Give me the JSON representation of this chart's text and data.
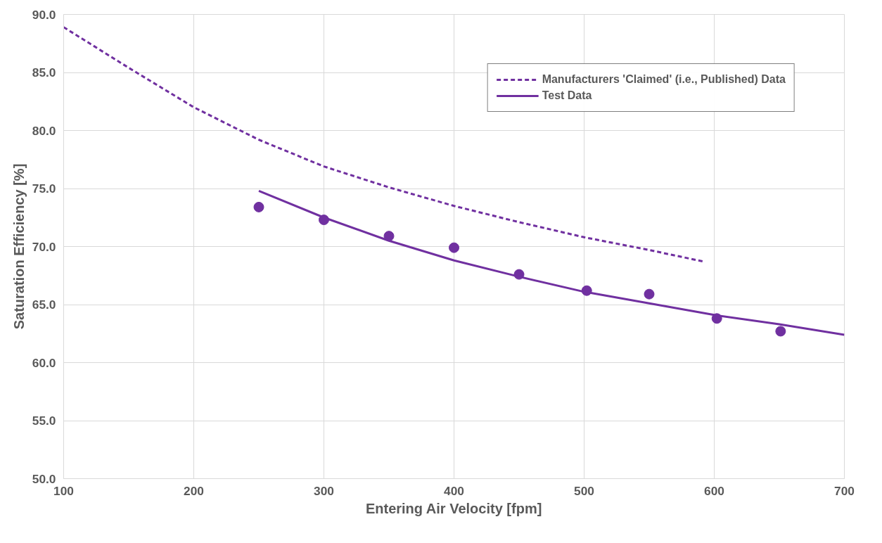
{
  "chart_data": {
    "type": "line",
    "xlabel": "Entering Air Velocity [fpm]",
    "ylabel": "Saturation Efficiency [%]",
    "xlim": [
      100,
      700
    ],
    "xticks": [
      100,
      200,
      300,
      400,
      500,
      600,
      700
    ],
    "ylim": [
      50,
      90
    ],
    "yticks": [
      {
        "value": 50,
        "label": "50.0"
      },
      {
        "value": 55,
        "label": "55.0"
      },
      {
        "value": 60,
        "label": "60.0"
      },
      {
        "value": 65,
        "label": "65.0"
      },
      {
        "value": 70,
        "label": "70.0"
      },
      {
        "value": 75,
        "label": "75.0"
      },
      {
        "value": 80,
        "label": "80.0"
      },
      {
        "value": 85,
        "label": "85.0"
      },
      {
        "value": 90,
        "label": "90.0"
      }
    ],
    "grid": true,
    "legend": "top right",
    "series": [
      {
        "name": "Manufacturers 'Claimed' (i.e., Published) Data",
        "line_style": "dashed",
        "marker": "none",
        "color": "#7030a0",
        "x": [
          100,
          150,
          200,
          250,
          300,
          350,
          400,
          450,
          500,
          550,
          592
        ],
        "values": [
          88.9,
          85.4,
          82.0,
          79.2,
          76.9,
          75.1,
          73.5,
          72.1,
          70.8,
          69.7,
          68.7
        ]
      },
      {
        "name": "Test Data",
        "line_style": "solid",
        "marker": "none",
        "color": "#7030a0",
        "x": [
          250,
          300,
          350,
          400,
          450,
          500,
          550,
          600,
          650,
          700
        ],
        "values": [
          74.8,
          72.5,
          70.5,
          68.8,
          67.4,
          66.1,
          65.1,
          64.1,
          63.3,
          62.4
        ]
      },
      {
        "type": "scatter",
        "marker": "circle",
        "color": "#7030a0",
        "x": [
          250,
          300,
          350,
          400,
          450,
          502,
          550,
          602,
          651
        ],
        "values": [
          73.4,
          72.3,
          70.9,
          69.9,
          67.6,
          66.2,
          65.9,
          63.8,
          62.7
        ]
      }
    ]
  }
}
